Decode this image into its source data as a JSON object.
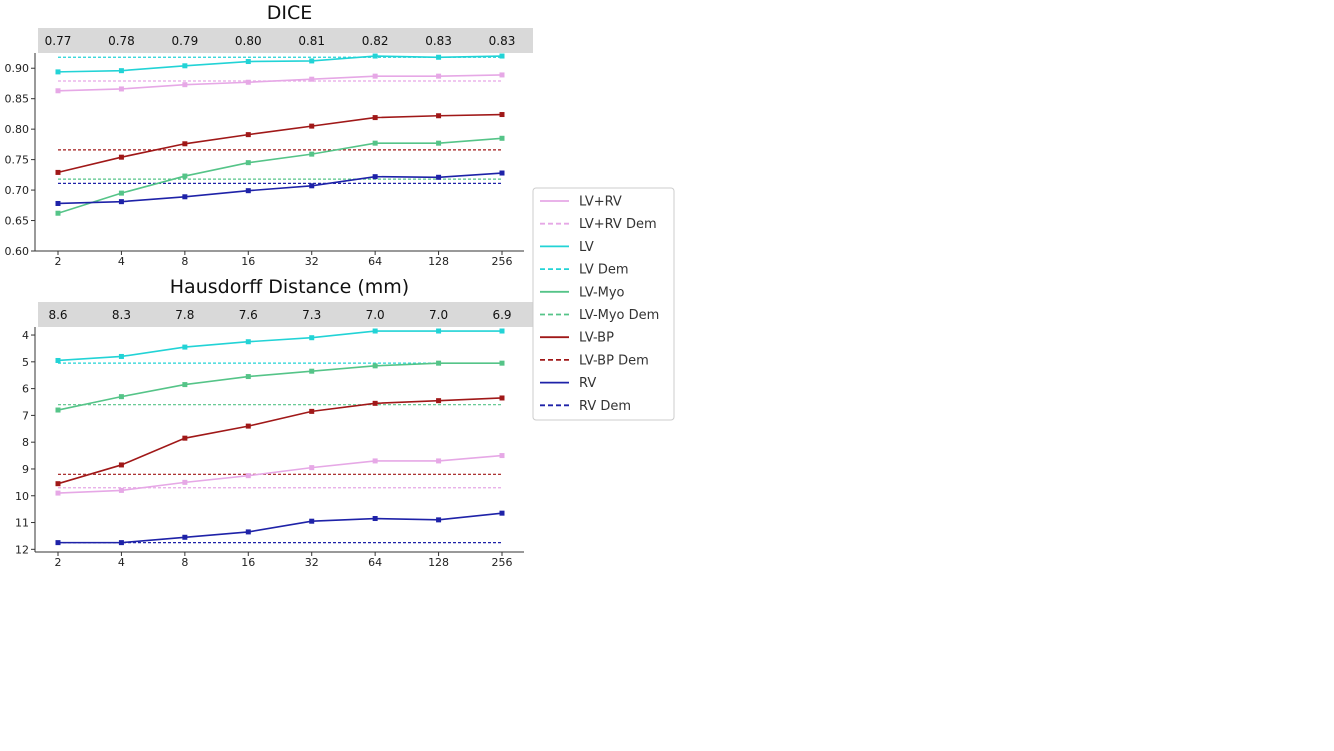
{
  "chart_data": [
    {
      "type": "line",
      "title": "DICE",
      "x": [
        "2",
        "4",
        "8",
        "16",
        "32",
        "64",
        "128",
        "256"
      ],
      "top_labels": [
        "0.77",
        "0.78",
        "0.79",
        "0.80",
        "0.81",
        "0.82",
        "0.83",
        "0.83"
      ],
      "yticks": [
        "0.60",
        "0.65",
        "0.70",
        "0.75",
        "0.80",
        "0.85",
        "0.90"
      ],
      "ylim": [
        0.6,
        0.925
      ],
      "y_inverted": false,
      "grid": false,
      "series": [
        {
          "name": "LV+RV",
          "color": "#e6a8e6",
          "values": [
            0.863,
            0.866,
            0.873,
            0.877,
            0.882,
            0.887,
            0.887,
            0.889
          ]
        },
        {
          "name": "LV",
          "color": "#22d3d6",
          "values": [
            0.894,
            0.896,
            0.904,
            0.911,
            0.912,
            0.92,
            0.918,
            0.92
          ]
        },
        {
          "name": "LV-Myo",
          "color": "#55c488",
          "values": [
            0.662,
            0.695,
            0.723,
            0.745,
            0.759,
            0.777,
            0.777,
            0.785
          ]
        },
        {
          "name": "LV-BP",
          "color": "#a01818",
          "values": [
            0.729,
            0.754,
            0.776,
            0.791,
            0.805,
            0.819,
            0.822,
            0.824
          ]
        },
        {
          "name": "RV",
          "color": "#1e22a8",
          "values": [
            0.678,
            0.681,
            0.689,
            0.699,
            0.707,
            0.722,
            0.721,
            0.728
          ]
        }
      ],
      "reference_lines": [
        {
          "name": "LV+RV Dem",
          "color": "#e6a8e6",
          "value": 0.879
        },
        {
          "name": "LV Dem",
          "color": "#22d3d6",
          "value": 0.918
        },
        {
          "name": "LV-Myo Dem",
          "color": "#55c488",
          "value": 0.718
        },
        {
          "name": "LV-BP Dem",
          "color": "#a01818",
          "value": 0.766
        },
        {
          "name": "RV Dem",
          "color": "#1e22a8",
          "value": 0.711
        }
      ]
    },
    {
      "type": "line",
      "title": "Hausdorff Distance (mm)",
      "x": [
        "2",
        "4",
        "8",
        "16",
        "32",
        "64",
        "128",
        "256"
      ],
      "top_labels": [
        "8.6",
        "8.3",
        "7.8",
        "7.6",
        "7.3",
        "7.0",
        "7.0",
        "6.9"
      ],
      "yticks": [
        "4",
        "5",
        "6",
        "7",
        "8",
        "9",
        "10",
        "11",
        "12"
      ],
      "ylim": [
        3.7,
        12.1
      ],
      "y_inverted": true,
      "grid": false,
      "series": [
        {
          "name": "LV+RV",
          "color": "#e6a8e6",
          "values": [
            9.9,
            9.8,
            9.5,
            9.25,
            8.95,
            8.7,
            8.7,
            8.5
          ]
        },
        {
          "name": "LV",
          "color": "#22d3d6",
          "values": [
            4.95,
            4.8,
            4.45,
            4.25,
            4.1,
            3.85,
            3.85,
            3.85
          ]
        },
        {
          "name": "LV-Myo",
          "color": "#55c488",
          "values": [
            6.8,
            6.3,
            5.85,
            5.55,
            5.35,
            5.15,
            5.05,
            5.05
          ]
        },
        {
          "name": "LV-BP",
          "color": "#a01818",
          "values": [
            9.55,
            8.85,
            7.85,
            7.4,
            6.85,
            6.55,
            6.45,
            6.35
          ]
        },
        {
          "name": "RV",
          "color": "#1e22a8",
          "values": [
            11.75,
            11.75,
            11.55,
            11.35,
            10.95,
            10.85,
            10.9,
            10.65
          ]
        }
      ],
      "reference_lines": [
        {
          "name": "LV+RV Dem",
          "color": "#e6a8e6",
          "value": 9.7
        },
        {
          "name": "LV Dem",
          "color": "#22d3d6",
          "value": 5.05
        },
        {
          "name": "LV-Myo Dem",
          "color": "#55c488",
          "value": 6.6
        },
        {
          "name": "LV-BP Dem",
          "color": "#a01818",
          "value": 9.2
        },
        {
          "name": "RV Dem",
          "color": "#1e22a8",
          "value": 11.75
        }
      ]
    }
  ],
  "legend": {
    "placement": "right",
    "items": [
      {
        "label": "LV+RV",
        "color": "#e6a8e6",
        "dashed": false
      },
      {
        "label": "LV+RV Dem",
        "color": "#e6a8e6",
        "dashed": true
      },
      {
        "label": "LV",
        "color": "#22d3d6",
        "dashed": false
      },
      {
        "label": "LV Dem",
        "color": "#22d3d6",
        "dashed": true
      },
      {
        "label": "LV-Myo",
        "color": "#55c488",
        "dashed": false
      },
      {
        "label": "LV-Myo Dem",
        "color": "#55c488",
        "dashed": true
      },
      {
        "label": "LV-BP",
        "color": "#a01818",
        "dashed": false
      },
      {
        "label": "LV-BP Dem",
        "color": "#a01818",
        "dashed": true
      },
      {
        "label": "RV",
        "color": "#1e22a8",
        "dashed": false
      },
      {
        "label": "RV Dem",
        "color": "#1e22a8",
        "dashed": true
      }
    ]
  }
}
